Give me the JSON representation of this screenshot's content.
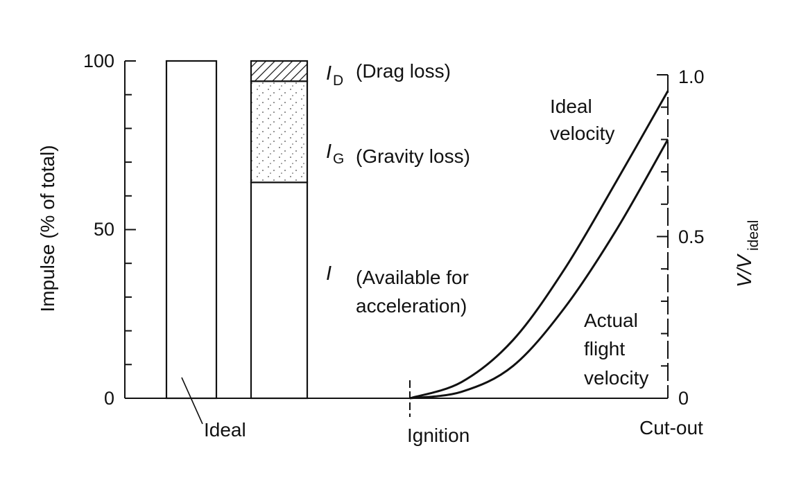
{
  "chart_data": {
    "type": "bar",
    "left_axis": {
      "label": "Impulse (% of total)",
      "ylim": [
        0,
        100
      ],
      "ticks": [
        "0",
        "50",
        "100"
      ]
    },
    "right_axis": {
      "label_main": "V/V",
      "label_sub": "ideal",
      "ylim": [
        0,
        1
      ],
      "ticks": [
        "0",
        "0.5",
        "1.0"
      ]
    },
    "bars": [
      {
        "name": "Ideal",
        "segments": [
          {
            "from": 0,
            "to": 100,
            "pattern": "none"
          }
        ]
      },
      {
        "name": "",
        "segments": [
          {
            "from": 0,
            "to": 64,
            "pattern": "none"
          },
          {
            "from": 64,
            "to": 94,
            "pattern": "dots"
          },
          {
            "from": 94,
            "to": 100,
            "pattern": "hatch"
          }
        ]
      }
    ],
    "segment_labels": [
      {
        "symbol": "I",
        "sub": "D",
        "text": "(Drag loss)"
      },
      {
        "symbol": "I",
        "sub": "G",
        "text": "(Gravity loss)"
      },
      {
        "symbol": "I",
        "sub": "",
        "text": "(Available for",
        "text2": "acceleration)"
      }
    ],
    "curves": [
      {
        "name_line1": "Ideal",
        "name_line2": "velocity",
        "t": [
          0,
          0.2,
          0.4,
          0.6,
          0.8,
          1.0
        ],
        "v": [
          0,
          0.05,
          0.18,
          0.4,
          0.67,
          0.95
        ]
      },
      {
        "name_line1": "Actual",
        "name_line2": "flight",
        "name_line3": "velocity",
        "t": [
          0,
          0.2,
          0.4,
          0.6,
          0.8,
          1.0
        ],
        "v": [
          0,
          0.02,
          0.1,
          0.28,
          0.52,
          0.8
        ]
      }
    ],
    "x_labels": {
      "ideal": "Ideal",
      "ignition": "Ignition",
      "cutout": "Cut-out"
    }
  }
}
